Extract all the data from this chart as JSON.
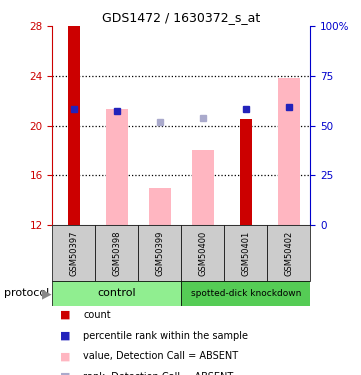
{
  "title": "GDS1472 / 1630372_s_at",
  "samples": [
    "GSM50397",
    "GSM50398",
    "GSM50399",
    "GSM50400",
    "GSM50401",
    "GSM50402"
  ],
  "ylim_left": [
    12,
    28
  ],
  "ylim_right": [
    0,
    100
  ],
  "yticks_left": [
    12,
    16,
    20,
    24,
    28
  ],
  "yticks_right": [
    0,
    25,
    50,
    75,
    100
  ],
  "ytick_labels_right": [
    "0",
    "25",
    "50",
    "75",
    "100%"
  ],
  "grid_lines": [
    16,
    20,
    24
  ],
  "red_bars": {
    "GSM50397": [
      12,
      28
    ],
    "GSM50401": [
      12,
      20.5
    ]
  },
  "pink_bars": {
    "GSM50398": [
      12,
      21.3
    ],
    "GSM50399": [
      12,
      15.0
    ],
    "GSM50400": [
      12,
      18.0
    ],
    "GSM50402": [
      12,
      23.8
    ]
  },
  "blue_squares": {
    "GSM50397": 21.3,
    "GSM50398": 21.2,
    "GSM50401": 21.35,
    "GSM50402": 21.5
  },
  "light_blue_squares": {
    "GSM50399": 20.3,
    "GSM50400": 20.6
  },
  "red_color": "#CC0000",
  "pink_color": "#FFB6C1",
  "blue_color": "#2222BB",
  "light_blue_color": "#AAAACC",
  "tick_color_left": "#CC0000",
  "tick_color_right": "#0000CC",
  "legend_items": [
    {
      "color": "#CC0000",
      "label": "count"
    },
    {
      "color": "#2222BB",
      "label": "percentile rank within the sample"
    },
    {
      "color": "#FFB6C1",
      "label": "value, Detection Call = ABSENT"
    },
    {
      "color": "#AAAACC",
      "label": "rank, Detection Call = ABSENT"
    }
  ],
  "control_color": "#90EE90",
  "knockdown_color": "#55CC55",
  "gray_box_color": "#CCCCCC"
}
